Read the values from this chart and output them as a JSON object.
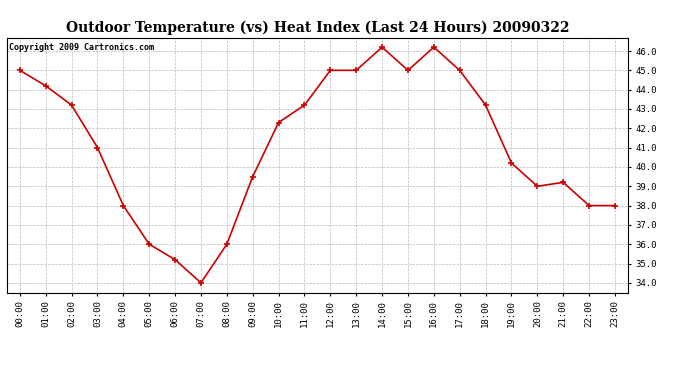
{
  "title": "Outdoor Temperature (vs) Heat Index (Last 24 Hours) 20090322",
  "copyright": "Copyright 2009 Cartronics.com",
  "hours": [
    "00:00",
    "01:00",
    "02:00",
    "03:00",
    "04:00",
    "05:00",
    "06:00",
    "07:00",
    "08:00",
    "09:00",
    "10:00",
    "11:00",
    "12:00",
    "13:00",
    "14:00",
    "15:00",
    "16:00",
    "17:00",
    "18:00",
    "19:00",
    "20:00",
    "21:00",
    "22:00",
    "23:00"
  ],
  "values": [
    45.0,
    44.2,
    43.2,
    41.0,
    38.0,
    36.0,
    35.2,
    34.0,
    36.0,
    39.5,
    42.3,
    43.2,
    45.0,
    45.0,
    46.2,
    45.0,
    46.2,
    45.0,
    43.2,
    40.2,
    39.0,
    39.2,
    38.0,
    38.0
  ],
  "line_color": "#cc0000",
  "marker_color": "#cc0000",
  "bg_color": "#ffffff",
  "plot_bg_color": "#ffffff",
  "grid_color": "#bbbbbb",
  "title_fontsize": 10,
  "copyright_fontsize": 6,
  "tick_fontsize": 6.5,
  "ylim": [
    33.5,
    46.7
  ],
  "yticks": [
    34.0,
    35.0,
    36.0,
    37.0,
    38.0,
    39.0,
    40.0,
    41.0,
    42.0,
    43.0,
    44.0,
    45.0,
    46.0
  ]
}
